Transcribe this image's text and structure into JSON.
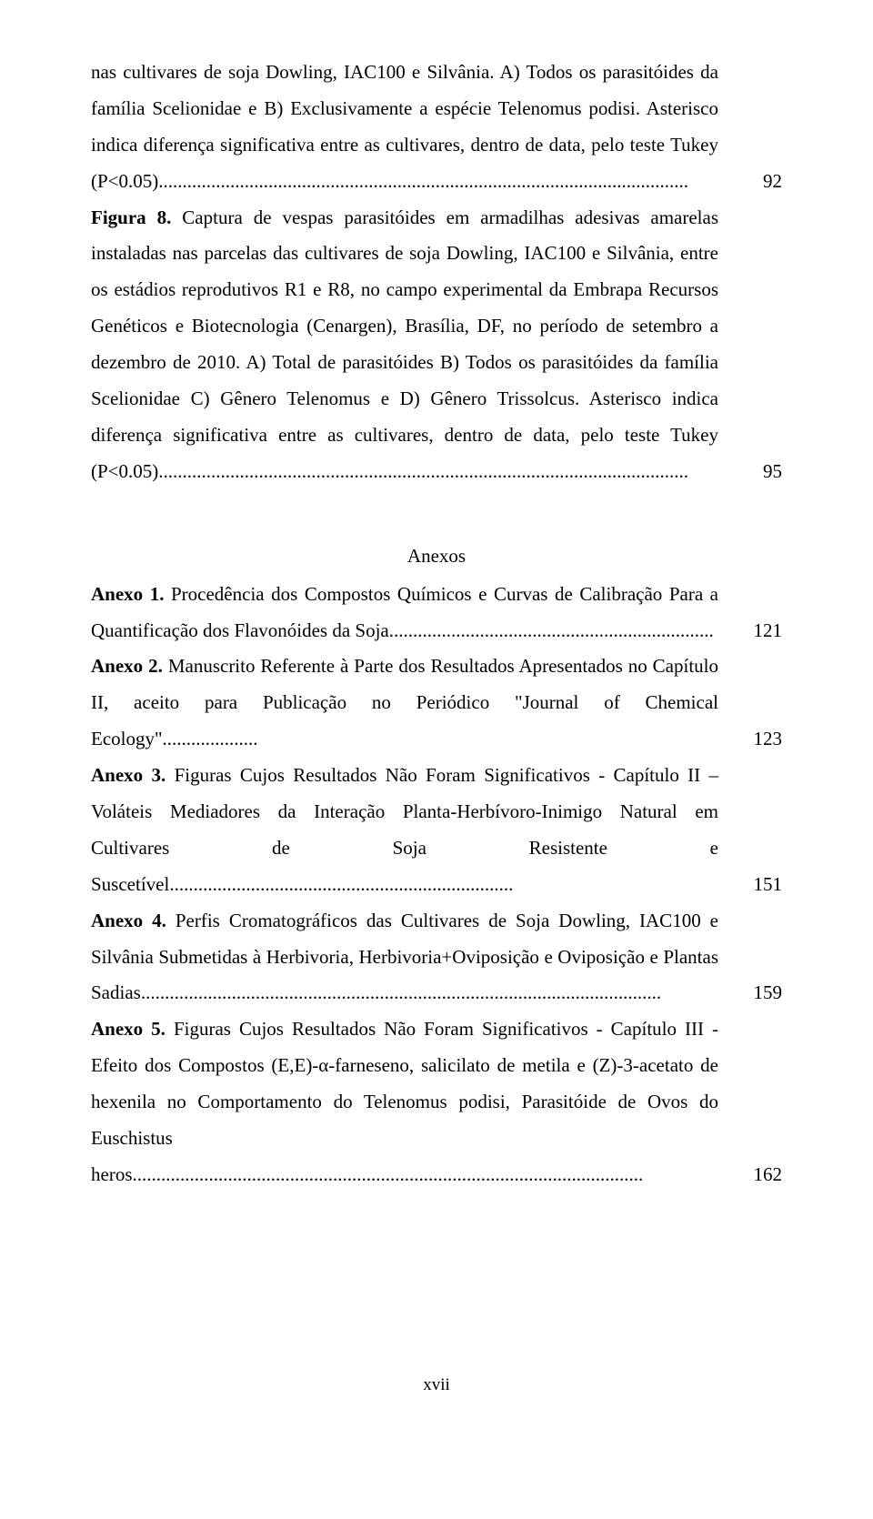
{
  "figures": [
    {
      "text": "nas cultivares de soja Dowling, IAC100 e Silvânia. A) Todos os parasitóides da família Scelionidae e B) Exclusivamente a espécie Telenomus podisi. Asterisco indica diferença significativa entre as cultivares, dentro de data, pelo teste Tukey (P<0.05)...............................................................................................................",
      "page": "92"
    },
    {
      "prefix": "Figura 8.",
      "text": " Captura de vespas parasitóides em armadilhas adesivas amarelas instaladas nas parcelas das cultivares de soja Dowling, IAC100 e Silvânia, entre os estádios reprodutivos R1 e R8, no campo experimental da Embrapa Recursos Genéticos e Biotecnologia (Cenargen), Brasília, DF, no período de setembro a dezembro de 2010. A) Total de parasitóides B) Todos os parasitóides da família Scelionidae C) Gênero Telenomus e D) Gênero Trissolcus. Asterisco indica diferença significativa entre as cultivares, dentro de data, pelo teste Tukey (P<0.05)...............................................................................................................",
      "page": "95"
    }
  ],
  "anexos_title": "Anexos",
  "anexos": [
    {
      "prefix": "Anexo 1.",
      "text": " Procedência dos Compostos Químicos e Curvas de Calibração Para a Quantificação dos Flavonóides da Soja....................................................................",
      "page": "121"
    },
    {
      "prefix": "Anexo 2.",
      "text": " Manuscrito Referente à Parte dos Resultados Apresentados no Capítulo II, aceito para Publicação no Periódico \"Journal of Chemical Ecology\"....................",
      "page": "123"
    },
    {
      "prefix": "Anexo 3.",
      "text": " Figuras Cujos Resultados Não Foram Significativos - Capítulo II – Voláteis Mediadores da Interação Planta-Herbívoro-Inimigo Natural em Cultivares de Soja Resistente e Suscetível........................................................................",
      "page": "151"
    },
    {
      "prefix": "Anexo 4.",
      "text": " Perfis Cromatográficos das Cultivares de Soja Dowling, IAC100 e Silvânia Submetidas à Herbivoria, Herbivoria+Oviposição e Oviposição e Plantas Sadias.............................................................................................................",
      "page": "159"
    },
    {
      "prefix": "Anexo 5.",
      "text": " Figuras Cujos Resultados Não Foram Significativos - Capítulo III - Efeito dos Compostos (E,E)-α-farneseno, salicilato de metila e (Z)-3-acetato de hexenila no Comportamento do Telenomus podisi, Parasitóide de Ovos do Euschistus heros...........................................................................................................",
      "page": "162"
    }
  ],
  "footer": "xvii"
}
